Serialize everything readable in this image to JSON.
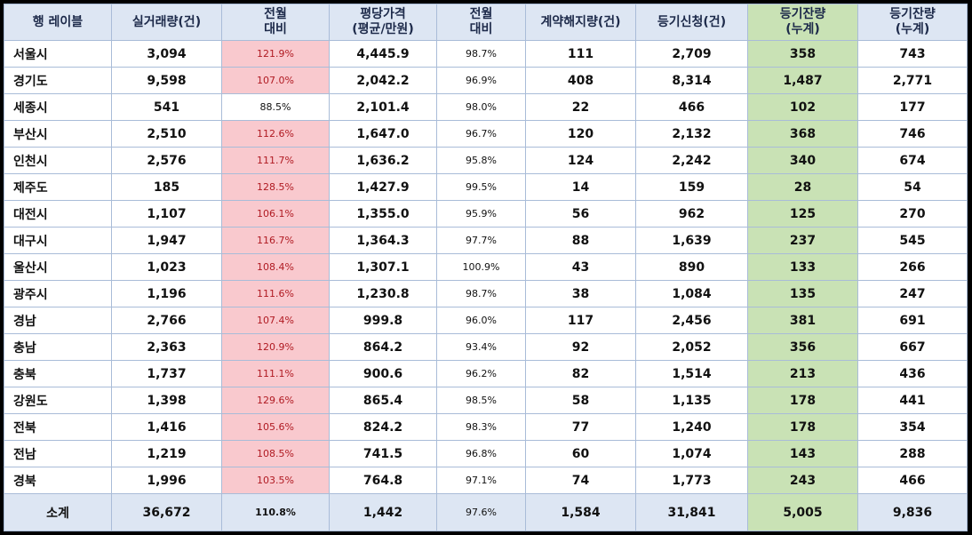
{
  "headers": {
    "region": "행 레이블",
    "transactions": "실거래량(건)",
    "trans_mom": [
      "전월",
      "대비"
    ],
    "price": [
      "평당가격",
      "(평균/만원)"
    ],
    "price_mom": [
      "전월",
      "대비"
    ],
    "cancel": "계약해지량(건)",
    "registry": "등기신청(건)",
    "remaining_green": [
      "등기잔량",
      "(누계)"
    ],
    "remaining": [
      "등기잔량",
      "(누계)"
    ]
  },
  "colors": {
    "highlight_red_bg": "#f9c9ce",
    "highlight_red_text": "#b01a22",
    "green_bg": "#c9e2b5",
    "header_bg": "#dde6f3"
  },
  "rows": [
    {
      "region": "서울시",
      "transactions": "3,094",
      "trans_mom": "121.9%",
      "price": "4,445.9",
      "price_mom": "98.7%",
      "cancel": "111",
      "registry": "2,709",
      "remaining_green": "358",
      "remaining": "743",
      "hi": true
    },
    {
      "region": "경기도",
      "transactions": "9,598",
      "trans_mom": "107.0%",
      "price": "2,042.2",
      "price_mom": "96.9%",
      "cancel": "408",
      "registry": "8,314",
      "remaining_green": "1,487",
      "remaining": "2,771",
      "hi": true
    },
    {
      "region": "세종시",
      "transactions": "541",
      "trans_mom": "88.5%",
      "price": "2,101.4",
      "price_mom": "98.0%",
      "cancel": "22",
      "registry": "466",
      "remaining_green": "102",
      "remaining": "177",
      "hi": false
    },
    {
      "region": "부산시",
      "transactions": "2,510",
      "trans_mom": "112.6%",
      "price": "1,647.0",
      "price_mom": "96.7%",
      "cancel": "120",
      "registry": "2,132",
      "remaining_green": "368",
      "remaining": "746",
      "hi": true
    },
    {
      "region": "인천시",
      "transactions": "2,576",
      "trans_mom": "111.7%",
      "price": "1,636.2",
      "price_mom": "95.8%",
      "cancel": "124",
      "registry": "2,242",
      "remaining_green": "340",
      "remaining": "674",
      "hi": true
    },
    {
      "region": "제주도",
      "transactions": "185",
      "trans_mom": "128.5%",
      "price": "1,427.9",
      "price_mom": "99.5%",
      "cancel": "14",
      "registry": "159",
      "remaining_green": "28",
      "remaining": "54",
      "hi": true
    },
    {
      "region": "대전시",
      "transactions": "1,107",
      "trans_mom": "106.1%",
      "price": "1,355.0",
      "price_mom": "95.9%",
      "cancel": "56",
      "registry": "962",
      "remaining_green": "125",
      "remaining": "270",
      "hi": true
    },
    {
      "region": "대구시",
      "transactions": "1,947",
      "trans_mom": "116.7%",
      "price": "1,364.3",
      "price_mom": "97.7%",
      "cancel": "88",
      "registry": "1,639",
      "remaining_green": "237",
      "remaining": "545",
      "hi": true
    },
    {
      "region": "울산시",
      "transactions": "1,023",
      "trans_mom": "108.4%",
      "price": "1,307.1",
      "price_mom": "100.9%",
      "cancel": "43",
      "registry": "890",
      "remaining_green": "133",
      "remaining": "266",
      "hi": true
    },
    {
      "region": "광주시",
      "transactions": "1,196",
      "trans_mom": "111.6%",
      "price": "1,230.8",
      "price_mom": "98.7%",
      "cancel": "38",
      "registry": "1,084",
      "remaining_green": "135",
      "remaining": "247",
      "hi": true
    },
    {
      "region": "경남",
      "transactions": "2,766",
      "trans_mom": "107.4%",
      "price": "999.8",
      "price_mom": "96.0%",
      "cancel": "117",
      "registry": "2,456",
      "remaining_green": "381",
      "remaining": "691",
      "hi": true
    },
    {
      "region": "충남",
      "transactions": "2,363",
      "trans_mom": "120.9%",
      "price": "864.2",
      "price_mom": "93.4%",
      "cancel": "92",
      "registry": "2,052",
      "remaining_green": "356",
      "remaining": "667",
      "hi": true
    },
    {
      "region": "충북",
      "transactions": "1,737",
      "trans_mom": "111.1%",
      "price": "900.6",
      "price_mom": "96.2%",
      "cancel": "82",
      "registry": "1,514",
      "remaining_green": "213",
      "remaining": "436",
      "hi": true
    },
    {
      "region": "강원도",
      "transactions": "1,398",
      "trans_mom": "129.6%",
      "price": "865.4",
      "price_mom": "98.5%",
      "cancel": "58",
      "registry": "1,135",
      "remaining_green": "178",
      "remaining": "441",
      "hi": true
    },
    {
      "region": "전북",
      "transactions": "1,416",
      "trans_mom": "105.6%",
      "price": "824.2",
      "price_mom": "98.3%",
      "cancel": "77",
      "registry": "1,240",
      "remaining_green": "178",
      "remaining": "354",
      "hi": true
    },
    {
      "region": "전남",
      "transactions": "1,219",
      "trans_mom": "108.5%",
      "price": "741.5",
      "price_mom": "96.8%",
      "cancel": "60",
      "registry": "1,074",
      "remaining_green": "143",
      "remaining": "288",
      "hi": true
    },
    {
      "region": "경북",
      "transactions": "1,996",
      "trans_mom": "103.5%",
      "price": "764.8",
      "price_mom": "97.1%",
      "cancel": "74",
      "registry": "1,773",
      "remaining_green": "243",
      "remaining": "466",
      "hi": true
    }
  ],
  "total": {
    "region": "소계",
    "transactions": "36,672",
    "trans_mom": "110.8%",
    "price": "1,442",
    "price_mom": "97.6%",
    "cancel": "1,584",
    "registry": "31,841",
    "remaining_green": "5,005",
    "remaining": "9,836"
  }
}
